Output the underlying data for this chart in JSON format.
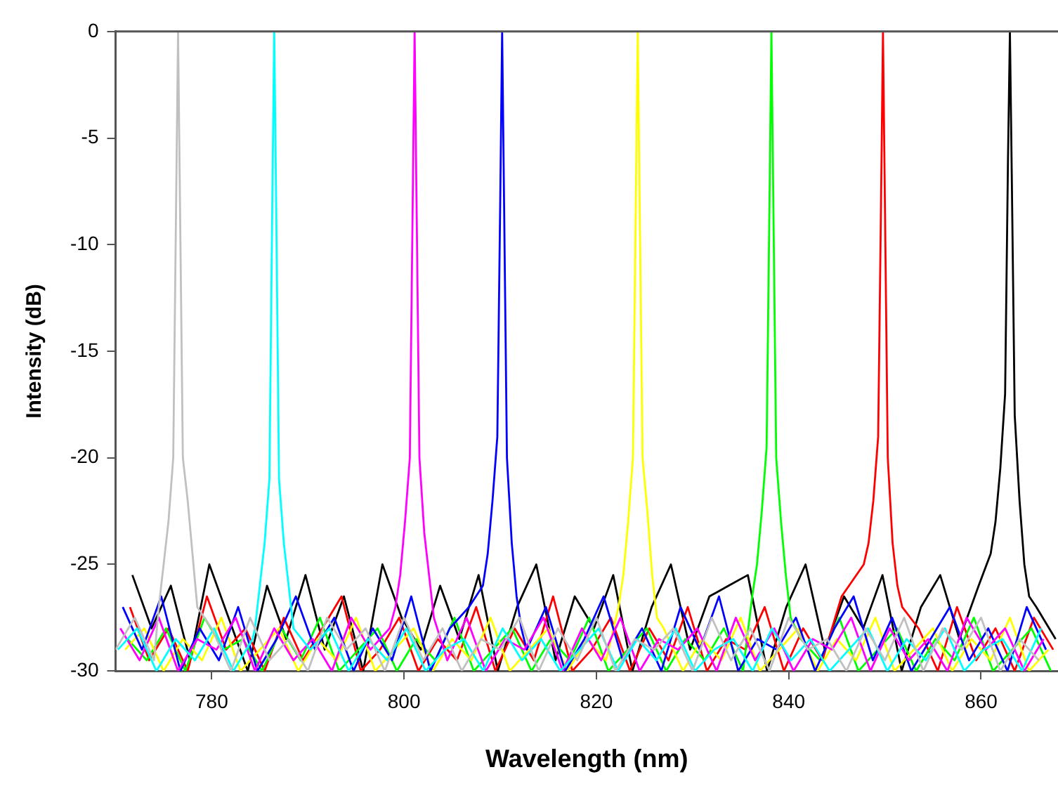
{
  "chart_data": {
    "type": "line",
    "xlabel": "Wavelength (nm)",
    "ylabel": "Intensity (dB)",
    "xlim": [
      770,
      868
    ],
    "xticks": [
      780,
      800,
      820,
      840,
      860
    ],
    "ylim": [
      -30,
      0
    ],
    "yticks": [
      -30,
      -25,
      -20,
      -15,
      -10,
      -5,
      0
    ],
    "grid": false,
    "legend": false,
    "series": [
      {
        "color": "#c0c0c0",
        "x": [
          770,
          772,
          774,
          774.5,
          775,
          775.5,
          776,
          776.3,
          776.5,
          776.7,
          777,
          777.5,
          778,
          778.5,
          780,
          782,
          784,
          786,
          788,
          790,
          792,
          794,
          796,
          798,
          800,
          802,
          804,
          806,
          808,
          810,
          812,
          814,
          816,
          818,
          820,
          822,
          824,
          826,
          828,
          830,
          832,
          834,
          836,
          838,
          840,
          842,
          844,
          846,
          848,
          850,
          852,
          854,
          856,
          858,
          860,
          862,
          864,
          866
        ],
        "values": [
          -29,
          -27.5,
          -29.5,
          -27,
          -25,
          -23,
          -20,
          -8,
          0,
          -8,
          -20,
          -22,
          -24.5,
          -27,
          -28,
          -30,
          -27.5,
          -29.5,
          -28.5,
          -30,
          -27.5,
          -29,
          -28,
          -30,
          -27.5,
          -29.5,
          -28,
          -30,
          -28.5,
          -29,
          -27.5,
          -30,
          -28,
          -29.5,
          -27.5,
          -30,
          -28.5,
          -29,
          -28,
          -30,
          -27.5,
          -29.5,
          -28,
          -30,
          -27.5,
          -29,
          -28.5,
          -30,
          -28,
          -29.5,
          -27.5,
          -30,
          -28,
          -29,
          -27.5,
          -30,
          -28.5,
          -29.5
        ]
      },
      {
        "color": "#00ffff",
        "x": [
          770.25,
          772.25,
          774.25,
          776.25,
          778.25,
          780.25,
          782.25,
          784.25,
          784.5,
          785,
          785.5,
          786,
          786.3,
          786.5,
          786.7,
          787,
          787.5,
          788,
          788.5,
          790.25,
          792.25,
          794.25,
          796.25,
          798.25,
          800.25,
          802.25,
          804.25,
          806.25,
          808.25,
          810.25,
          812.25,
          814.25,
          816.25,
          818.25,
          820.25,
          822.25,
          824.25,
          826.25,
          828.25,
          830.25,
          832.25,
          834.25,
          836.25,
          838.25,
          840.25,
          842.25,
          844.25,
          846.25,
          848.25,
          850.25,
          852.25,
          854.25,
          856.25,
          858.25,
          860.25,
          862.25,
          864.25,
          866.25
        ],
        "values": [
          -29,
          -28,
          -30,
          -28.5,
          -29.5,
          -28,
          -30,
          -28.5,
          -28,
          -26,
          -24,
          -21,
          -8,
          0,
          -8,
          -21,
          -24,
          -26,
          -28,
          -29,
          -28,
          -30,
          -28.5,
          -29.5,
          -28,
          -30,
          -29,
          -28.5,
          -30,
          -28,
          -29.5,
          -28.5,
          -30,
          -29,
          -28,
          -30,
          -28.5,
          -29.5,
          -28,
          -30,
          -29,
          -28.5,
          -30,
          -28,
          -29.5,
          -28.5,
          -30,
          -29,
          -28,
          -30,
          -28.5,
          -29.5,
          -28,
          -30,
          -29,
          -28.5,
          -30,
          -28
        ]
      },
      {
        "color": "#ff00ff",
        "x": [
          770.5,
          772.5,
          774.5,
          776.5,
          778.5,
          780.5,
          782.5,
          784.5,
          786.5,
          788.5,
          790.5,
          792.5,
          794.5,
          796.5,
          798.5,
          799.1,
          799.6,
          800.1,
          800.6,
          800.9,
          801.1,
          801.3,
          801.6,
          802.1,
          802.6,
          803.1,
          804.5,
          806.5,
          808.5,
          810.5,
          812.5,
          814.5,
          816.5,
          818.5,
          820.5,
          822.5,
          824.5,
          826.5,
          828.5,
          830.5,
          832.5,
          834.5,
          836.5,
          838.5,
          840.5,
          842.5,
          844.5,
          846.5,
          848.5,
          850.5,
          852.5,
          854.5,
          856.5,
          858.5,
          860.5,
          862.5,
          864.5,
          866.5
        ],
        "values": [
          -28,
          -29.5,
          -27.5,
          -30,
          -28.5,
          -29,
          -27.5,
          -30,
          -28,
          -29.5,
          -28.5,
          -30,
          -27.5,
          -29,
          -28,
          -27,
          -25.5,
          -23,
          -20,
          -8,
          0,
          -8,
          -20,
          -23.5,
          -25.5,
          -27.5,
          -29.5,
          -27.5,
          -30,
          -28.5,
          -29,
          -27.5,
          -30,
          -28,
          -29.5,
          -27.5,
          -30,
          -28.5,
          -29,
          -28,
          -30,
          -27.5,
          -29.5,
          -28,
          -30,
          -28.5,
          -29,
          -27.5,
          -30,
          -28,
          -29.5,
          -28.5,
          -30,
          -27.5,
          -29,
          -28,
          -30,
          -28.5
        ]
      },
      {
        "color": "#0000ff",
        "x": [
          770.75,
          772.75,
          774.75,
          776.75,
          778.75,
          780.75,
          782.75,
          784.75,
          786.75,
          788.75,
          790.75,
          792.75,
          794.75,
          796.75,
          798.75,
          800.75,
          802.75,
          804.75,
          806.75,
          808.2,
          808.7,
          809.2,
          809.7,
          810,
          810.2,
          810.4,
          810.7,
          811.2,
          811.7,
          812.2,
          812.75,
          814.75,
          816.75,
          818.75,
          820.75,
          822.75,
          824.75,
          826.75,
          828.75,
          830.75,
          832.75,
          834.75,
          836.75,
          838.75,
          840.75,
          842.75,
          844.75,
          846.75,
          848.75,
          850.75,
          852.75,
          854.75,
          856.75,
          858.75,
          860.75,
          862.75,
          864.75,
          866.75
        ],
        "values": [
          -27,
          -29,
          -26.5,
          -30,
          -28,
          -29.5,
          -27,
          -30,
          -28.5,
          -26.5,
          -29,
          -27.5,
          -30,
          -28,
          -29.5,
          -26.5,
          -30,
          -28,
          -27,
          -26,
          -24.5,
          -22,
          -19,
          -8,
          0,
          -8,
          -20,
          -24,
          -26.5,
          -28,
          -29,
          -27,
          -30,
          -28.5,
          -26.5,
          -29.5,
          -28,
          -30,
          -27,
          -29,
          -26.5,
          -30,
          -28.5,
          -29,
          -27.5,
          -30,
          -28,
          -26.5,
          -29.5,
          -27.5,
          -30,
          -28.5,
          -27,
          -29.5,
          -28,
          -30,
          -27,
          -29
        ]
      },
      {
        "color": "#ffff00",
        "x": [
          771,
          773,
          775,
          777,
          779,
          781,
          783,
          785,
          787,
          789,
          791,
          793,
          795,
          797,
          799,
          801,
          803,
          805,
          807,
          809,
          811,
          813,
          815,
          817,
          819,
          821,
          822.3,
          822.8,
          823.3,
          823.8,
          824.1,
          824.3,
          824.5,
          824.8,
          825.3,
          825.8,
          826.3,
          827,
          829,
          831,
          833,
          835,
          837,
          839,
          841,
          843,
          845,
          847,
          849,
          851,
          853,
          855,
          857,
          859,
          861,
          863,
          865,
          867
        ],
        "values": [
          -29,
          -28,
          -30,
          -28.5,
          -29.5,
          -27.5,
          -30,
          -29,
          -28,
          -30,
          -28.5,
          -29.5,
          -27.5,
          -30,
          -29,
          -28,
          -30,
          -28.5,
          -29.5,
          -27.5,
          -30,
          -29,
          -28,
          -30,
          -28.5,
          -29.5,
          -27,
          -25.5,
          -23,
          -20,
          -8,
          0,
          -8,
          -20,
          -22.5,
          -25.5,
          -27.5,
          -28,
          -30,
          -28.5,
          -29.5,
          -27.5,
          -30,
          -29,
          -28,
          -30,
          -28.5,
          -29.5,
          -27.5,
          -30,
          -29,
          -28,
          -30,
          -28.5,
          -29.5,
          -27.5,
          -30,
          -29
        ]
      },
      {
        "color": "#00ff00",
        "x": [
          771.25,
          773.25,
          775.25,
          777.25,
          779.25,
          781.25,
          783.25,
          785.25,
          787.25,
          789.25,
          791.25,
          793.25,
          795.25,
          797.25,
          799.25,
          801.25,
          803.25,
          805.25,
          807.25,
          809.25,
          811.25,
          813.25,
          815.25,
          817.25,
          819.25,
          821.25,
          823.25,
          825.25,
          827.25,
          829.25,
          831.25,
          833.25,
          835.25,
          836.2,
          836.7,
          837.2,
          837.7,
          838,
          838.2,
          838.4,
          838.7,
          839.2,
          839.7,
          840.2,
          841.25,
          843.25,
          845.25,
          847.25,
          849.25,
          851.25,
          853.25,
          855.25,
          857.25,
          859.25,
          861.25,
          863.25,
          865.25,
          867.25
        ],
        "values": [
          -28.5,
          -29.5,
          -28,
          -30,
          -27.5,
          -29,
          -28.5,
          -30,
          -28,
          -29.5,
          -27.5,
          -30,
          -29,
          -28,
          -30,
          -28.5,
          -29.5,
          -27.5,
          -30,
          -29,
          -28,
          -30,
          -28.5,
          -29.5,
          -27.5,
          -30,
          -29,
          -28,
          -30,
          -28.5,
          -29.5,
          -28,
          -30,
          -26.5,
          -25,
          -22.5,
          -19.5,
          -8,
          0,
          -8,
          -20,
          -23,
          -25.5,
          -27.5,
          -28.5,
          -29.5,
          -27.5,
          -30,
          -29,
          -28,
          -30,
          -28.5,
          -29.5,
          -27.5,
          -30,
          -29,
          -28,
          -30
        ]
      },
      {
        "color": "#ff0000",
        "x": [
          771.5,
          773.5,
          775.5,
          777.5,
          779.5,
          781.5,
          783.5,
          785.5,
          787.5,
          789.5,
          791.5,
          793.5,
          795.5,
          797.5,
          799.5,
          801.5,
          803.5,
          805.5,
          807.5,
          809.5,
          811.5,
          813.5,
          815.5,
          817.5,
          819.5,
          821.5,
          823.5,
          825.5,
          827.5,
          829.5,
          831.5,
          833.5,
          835.5,
          837.5,
          839.5,
          841.5,
          843.5,
          845.5,
          847.8,
          848.3,
          848.8,
          849.3,
          849.6,
          849.8,
          850,
          850.3,
          850.8,
          851.3,
          851.8,
          853.5,
          855.5,
          857.5,
          859.5,
          861.5,
          863.5,
          865.5,
          867.5
        ],
        "values": [
          -27,
          -29.5,
          -28,
          -30,
          -26.5,
          -29,
          -28,
          -30,
          -27.5,
          -29.5,
          -28,
          -26.5,
          -30,
          -29,
          -27.5,
          -30,
          -28.5,
          -29.5,
          -27,
          -30,
          -28,
          -29.5,
          -26.5,
          -30,
          -29,
          -27.5,
          -30,
          -28,
          -29.5,
          -27,
          -30,
          -28.5,
          -29,
          -27,
          -30,
          -28,
          -29.5,
          -26.5,
          -25,
          -24,
          -22,
          -19,
          -8,
          0,
          -8,
          -20,
          -24,
          -26,
          -27,
          -28,
          -30,
          -27,
          -29.5,
          -28,
          -30,
          -27.5,
          -29
        ]
      },
      {
        "color": "#000000",
        "x": [
          771.75,
          773.75,
          775.75,
          777.75,
          779.75,
          781.75,
          783.75,
          785.75,
          787.75,
          789.75,
          791.75,
          793.75,
          795.75,
          797.75,
          799.75,
          801.75,
          803.75,
          805.75,
          807.75,
          809.75,
          811.75,
          813.75,
          815.75,
          817.75,
          819.75,
          821.75,
          823.75,
          825.75,
          827.75,
          829.75,
          831.75,
          833.75,
          835.75,
          837.75,
          839.75,
          841.75,
          843.75,
          845.75,
          847.75,
          849.75,
          851.75,
          853.75,
          855.75,
          857.75,
          859.75,
          861,
          861.5,
          862,
          862.5,
          862.8,
          863,
          863.2,
          863.5,
          864,
          864.5,
          865,
          865.75,
          867.75
        ],
        "values": [
          -25.5,
          -28,
          -26,
          -29.5,
          -25,
          -27.5,
          -30,
          -26,
          -28.5,
          -25.5,
          -29,
          -26.5,
          -30,
          -25,
          -27.5,
          -29,
          -26,
          -28.5,
          -25.5,
          -30,
          -27,
          -25,
          -29.5,
          -26.5,
          -28,
          -25.5,
          -30,
          -27,
          -25,
          -29,
          -26.5,
          -26,
          -25.5,
          -30,
          -27,
          -25,
          -29,
          -26.5,
          -28,
          -25.5,
          -30,
          -27,
          -25.5,
          -28.5,
          -26,
          -24.5,
          -23,
          -20.5,
          -17,
          -6,
          0,
          -7,
          -18,
          -22,
          -25,
          -26.5,
          -27,
          -28.5
        ]
      }
    ]
  }
}
